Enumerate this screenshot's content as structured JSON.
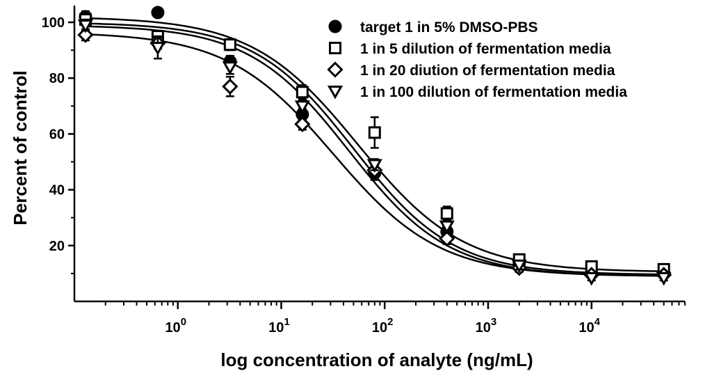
{
  "chart_data": {
    "type": "scatter",
    "xlabel": "log concentration of analyte (ng/mL)",
    "ylabel": "Percent of control",
    "x_scale": "log",
    "xlim": [
      0.1,
      80000
    ],
    "ylim": [
      0,
      106
    ],
    "y_ticks": [
      20,
      40,
      60,
      80,
      100
    ],
    "x_ticks": [
      {
        "value": 1,
        "base": "10",
        "exp": "0"
      },
      {
        "value": 10,
        "base": "10",
        "exp": "1"
      },
      {
        "value": 100,
        "base": "10",
        "exp": "2"
      },
      {
        "value": 1000,
        "base": "10",
        "exp": "3"
      },
      {
        "value": 10000,
        "base": "10",
        "exp": "4"
      }
    ],
    "grid": false,
    "legend_position": "top-right",
    "series": [
      {
        "name": "target 1 in 5% DMSO-PBS",
        "marker": "filled-circle",
        "x": [
          0.128,
          0.64,
          3.2,
          16,
          80,
          400,
          2000,
          10000,
          50000
        ],
        "y": [
          102,
          103.5,
          86,
          67,
          46,
          25,
          14,
          10,
          10
        ],
        "err": [
          2,
          1.5,
          2,
          2,
          2.5,
          2,
          1.5,
          1,
          1
        ],
        "fit": {
          "top": 100,
          "bottom": 9.5,
          "ec50": 50,
          "hill": 0.9
        }
      },
      {
        "name": "1 in 5 dilution of fermentation media",
        "marker": "open-square",
        "x": [
          0.128,
          0.64,
          3.2,
          16,
          80,
          400,
          2000,
          10000,
          50000
        ],
        "y": [
          101,
          95,
          92,
          75,
          60.5,
          31.5,
          15,
          12.5,
          11.5
        ],
        "err": [
          2,
          2,
          2,
          2.5,
          5.5,
          2.5,
          1.5,
          1,
          1
        ],
        "fit": {
          "top": 102,
          "bottom": 10.5,
          "ec50": 55,
          "hill": 0.85
        }
      },
      {
        "name": "1 in 20 diution of fermentation media",
        "marker": "open-diamond",
        "x": [
          0.128,
          0.64,
          3.2,
          16,
          80,
          400,
          2000,
          10000,
          50000
        ],
        "y": [
          95.5,
          92.5,
          77,
          63.5,
          47,
          22.5,
          12,
          9.5,
          9.5
        ],
        "err": [
          2,
          2,
          3.5,
          2,
          2,
          2,
          1.5,
          1,
          1
        ],
        "fit": {
          "top": 96.5,
          "bottom": 9,
          "ec50": 32,
          "hill": 0.85
        }
      },
      {
        "name": "1 in 100 dilution of fermentation media",
        "marker": "open-triangle-down",
        "x": [
          0.128,
          0.64,
          3.2,
          16,
          80,
          400,
          2000,
          10000,
          50000
        ],
        "y": [
          99,
          91,
          84,
          70,
          49,
          27,
          13,
          8.5,
          8.5
        ],
        "err": [
          2,
          4,
          2.5,
          2,
          2,
          2.5,
          1.5,
          1,
          1
        ],
        "fit": {
          "top": 99,
          "bottom": 9,
          "ec50": 45,
          "hill": 0.9
        }
      }
    ]
  }
}
